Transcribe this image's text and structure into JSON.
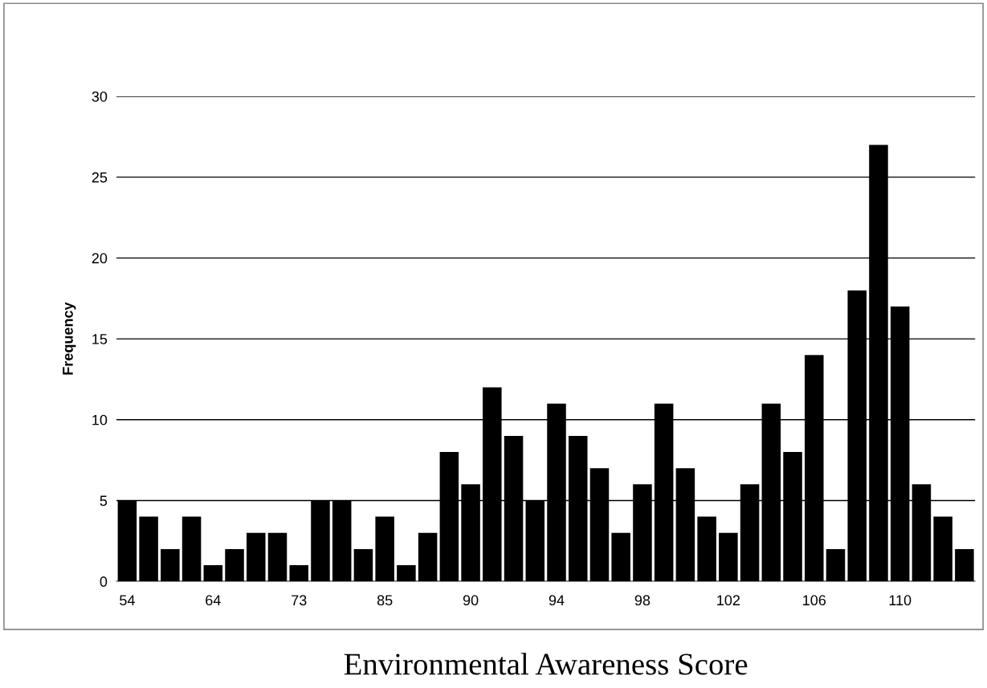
{
  "chart_data": {
    "type": "bar",
    "xlabel": "Environmental Awareness Score",
    "ylabel": "Frequency",
    "categories": [
      "54",
      null,
      null,
      null,
      "64",
      null,
      null,
      null,
      "73",
      null,
      null,
      null,
      "85",
      null,
      null,
      null,
      "90",
      null,
      null,
      null,
      "94",
      null,
      null,
      null,
      "98",
      null,
      null,
      null,
      "102",
      null,
      null,
      null,
      "106",
      null,
      null,
      null,
      "110",
      null,
      null,
      null
    ],
    "values": [
      5,
      4,
      2,
      4,
      1,
      2,
      3,
      3,
      1,
      5,
      5,
      2,
      4,
      1,
      3,
      8,
      6,
      12,
      9,
      5,
      11,
      9,
      7,
      3,
      6,
      11,
      7,
      4,
      3,
      6,
      11,
      8,
      14,
      2,
      18,
      27,
      17,
      6,
      4,
      2
    ],
    "color": "#000000",
    "ylim": [
      0,
      30
    ],
    "yticks": [
      0,
      5,
      10,
      15,
      20,
      25,
      30
    ],
    "grid": "y"
  }
}
